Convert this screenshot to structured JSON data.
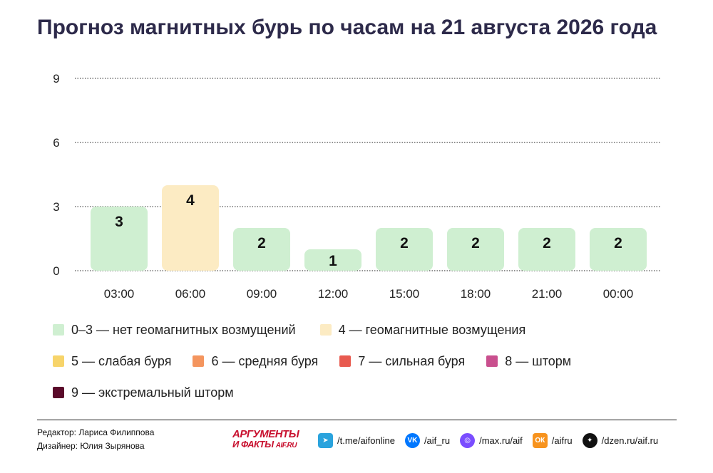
{
  "title": "Прогноз магнитных бурь по часам на 21 августа 2026 года",
  "chart_data": {
    "type": "bar",
    "categories": [
      "03:00",
      "06:00",
      "09:00",
      "12:00",
      "15:00",
      "18:00",
      "21:00",
      "00:00"
    ],
    "values": [
      3,
      4,
      2,
      1,
      2,
      2,
      2,
      2
    ],
    "ylim": [
      0,
      9
    ],
    "yticks": [
      0,
      3,
      6,
      9
    ],
    "grid": true,
    "bar_colors": [
      "#cfefd1",
      "#fcebc3",
      "#cfefd1",
      "#cfefd1",
      "#cfefd1",
      "#cfefd1",
      "#cfefd1",
      "#cfefd1"
    ],
    "xlabel": "",
    "ylabel": ""
  },
  "legend": [
    [
      {
        "label": "0–3 — нет геомагнитных возмущений",
        "color": "#cfefd1"
      },
      {
        "label": "4 — геомагнитные возмущения",
        "color": "#fcebc3"
      }
    ],
    [
      {
        "label": "5 — слабая буря",
        "color": "#f7d46a"
      },
      {
        "label": "6 — средняя буря",
        "color": "#f4955e"
      },
      {
        "label": "7 — сильная буря",
        "color": "#e85a4f"
      },
      {
        "label": "8 — шторм",
        "color": "#c94f8e"
      }
    ],
    [
      {
        "label": "9 — экстремальный шторм",
        "color": "#5a0a2a"
      }
    ]
  ],
  "credits": {
    "editor": "Редактор: Лариса Филиппова",
    "designer": "Дизайнер: Юлия Зырянова"
  },
  "logo": {
    "top": "АРГУМЕНТЫ",
    "bottom": "И ФАКТЫ",
    "domain": "AIF.RU"
  },
  "socials": [
    {
      "icon": "telegram-icon",
      "glyph": "➤",
      "color": "#2aa3dd",
      "label": "/t.me/aifonline",
      "shape": "sq"
    },
    {
      "icon": "vk-icon",
      "glyph": "VK",
      "color": "#0077ff",
      "label": "/aif_ru",
      "shape": "circle"
    },
    {
      "icon": "max-icon",
      "glyph": "◎",
      "color": "#7a4dff",
      "label": "/max.ru/aif",
      "shape": "circle"
    },
    {
      "icon": "odnoklassniki-icon",
      "glyph": "ОК",
      "color": "#f7931e",
      "label": "/aifru",
      "shape": "sq"
    },
    {
      "icon": "dzen-icon",
      "glyph": "✦",
      "color": "#111111",
      "label": "/dzen.ru/aif.ru",
      "shape": "circle"
    }
  ]
}
